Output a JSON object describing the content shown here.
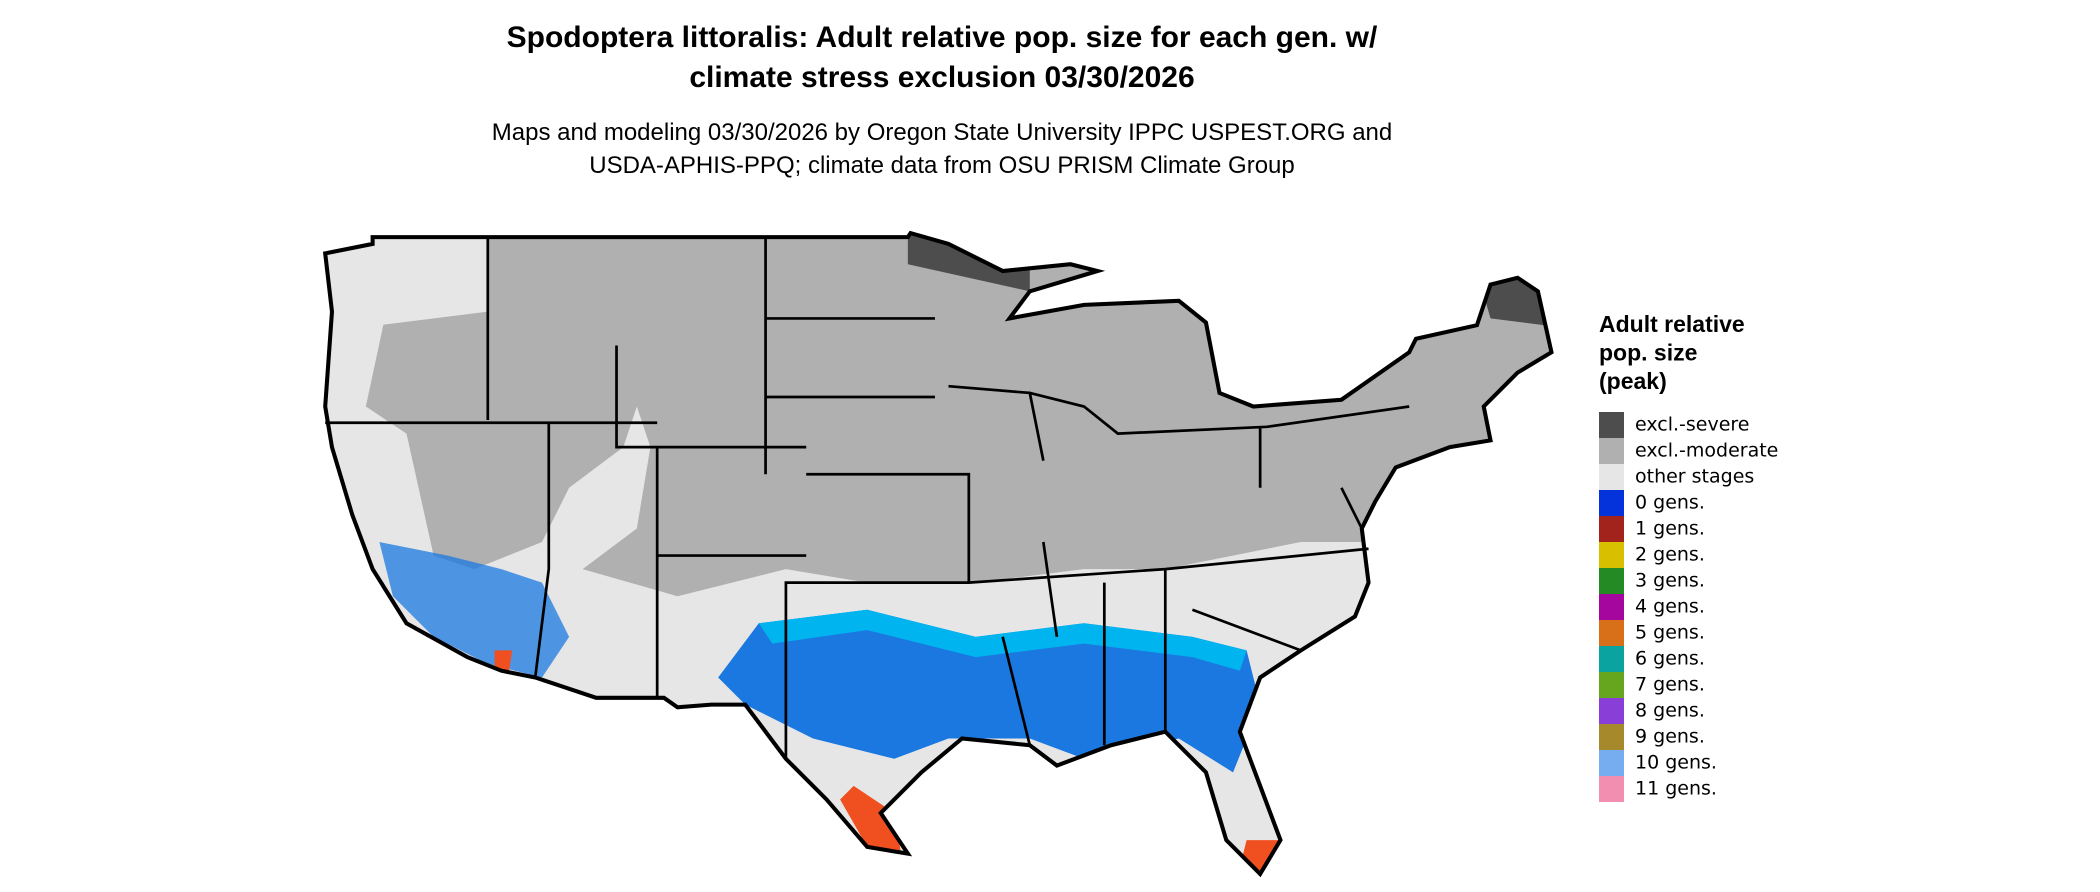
{
  "title": "Spodoptera littoralis: Adult relative pop. size for each gen. w/\nclimate stress exclusion 03/30/2026",
  "subtitle": "Maps and modeling 03/30/2026 by Oregon State University IPPC USPEST.ORG and\nUSDA-APHIS-PPQ; climate data from OSU PRISM Climate Group",
  "legend": {
    "title": "Adult relative\npop. size\n(peak)",
    "items": [
      {
        "label": "excl.-severe",
        "color": "#4d4d4d"
      },
      {
        "label": "excl.-moderate",
        "color": "#b0b0b0"
      },
      {
        "label": "other stages",
        "color": "#e6e6e6"
      },
      {
        "label": "0 gens.",
        "color": "#0433dc"
      },
      {
        "label": "1 gens.",
        "color": "#a2221c"
      },
      {
        "label": "2 gens.",
        "color": "#d8c000"
      },
      {
        "label": "3 gens.",
        "color": "#248a24"
      },
      {
        "label": "4 gens.",
        "color": "#a4069e"
      },
      {
        "label": "5 gens.",
        "color": "#d8701a"
      },
      {
        "label": "6 gens.",
        "color": "#0aa3a0"
      },
      {
        "label": "7 gens.",
        "color": "#66a61e"
      },
      {
        "label": "8 gens.",
        "color": "#8a3ed8"
      },
      {
        "label": "9 gens.",
        "color": "#a6892a"
      },
      {
        "label": "10 gens.",
        "color": "#76acf0"
      },
      {
        "label": "11 gens.",
        "color": "#f28fb0"
      }
    ]
  }
}
